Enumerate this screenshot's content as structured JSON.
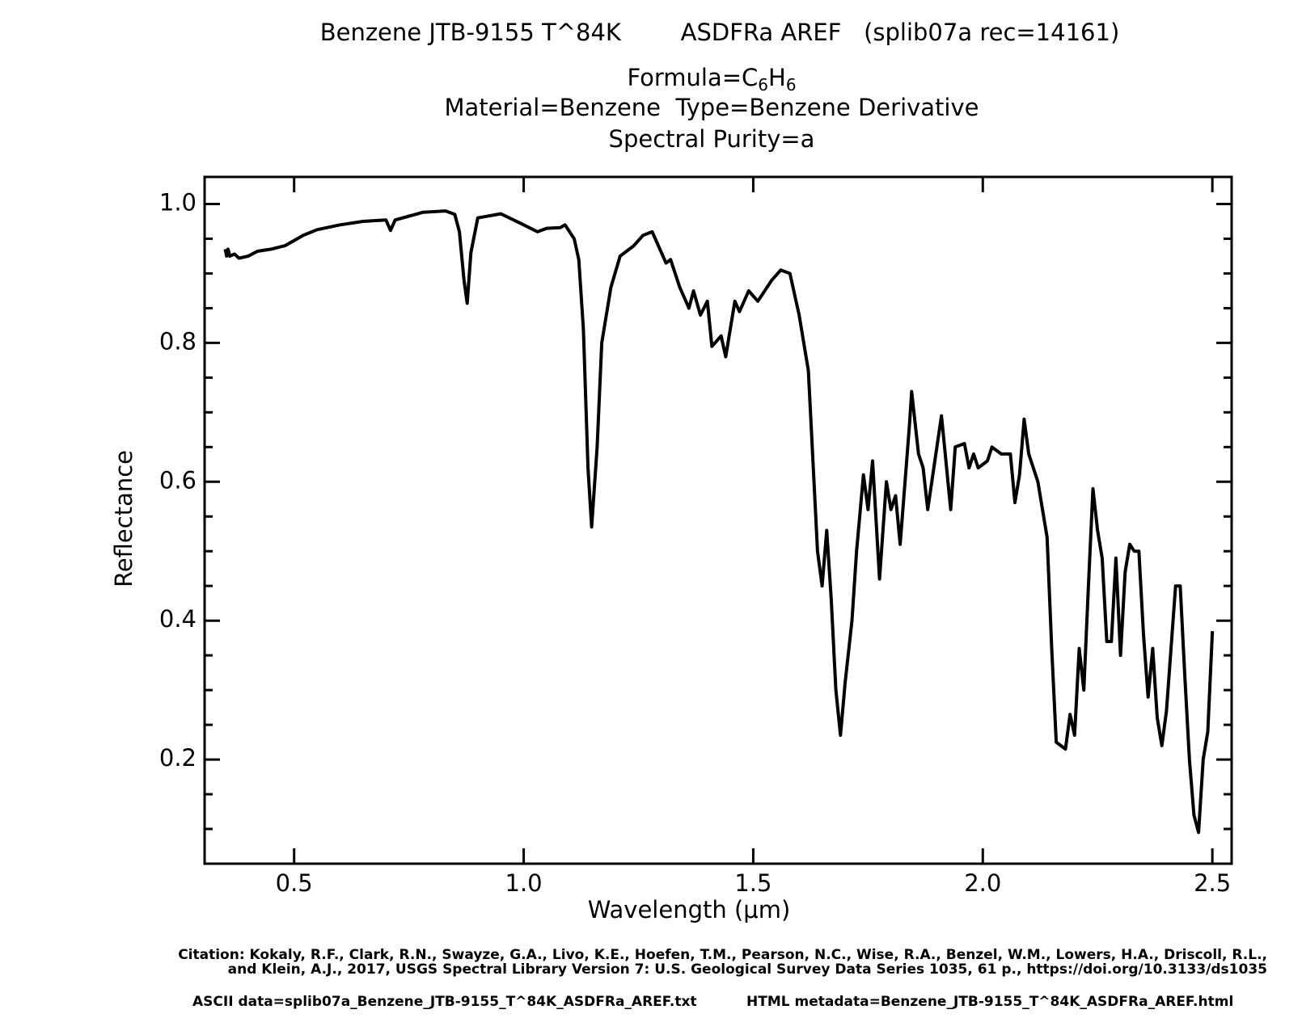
{
  "chart_data": {
    "type": "line",
    "title": "Benzene JTB-9155 T^84K        ASDFRa AREF   (splib07a rec=14161)",
    "formula": [
      "Formula=C",
      "6",
      "H",
      "6"
    ],
    "subtitle_lines": [
      "Material=Benzene  Type=Benzene Derivative",
      "Spectral Purity=a"
    ],
    "xlabel": "Wavelength (μm)",
    "ylabel": "Reflectance",
    "citation": [
      "Citation: Kokaly, R.F., Clark, R.N., Swayze, G.A., Livo, K.E., Hoefen, T.M., Pearson, N.C., Wise, R.A., Benzel, W.M., Lowers, H.A., Driscoll, R.L.,",
      "and Klein, A.J., 2017, USGS Spectral Library Version 7: U.S. Geological Survey Data Series 1035, 61 p., https://doi.org/10.3133/ds1035"
    ],
    "footer": [
      "ASCII data=splib07a_Benzene_JTB-9155_T^84K_ASDFRa_AREF.txt",
      "HTML metadata=Benzene_JTB-9155_T^84K_ASDFRa_AREF.html"
    ],
    "xlim": [
      0.305,
      2.542
    ],
    "ylim": [
      0.05,
      1.039
    ],
    "xticks": [
      0.5,
      {
        "value": 1,
        "label": "1.0"
      },
      1.5,
      {
        "value": 2,
        "label": "2.0"
      },
      2.5
    ],
    "yticks": [
      0.2,
      0.4,
      0.6,
      0.8,
      {
        "value": 1,
        "label": "1.0"
      }
    ],
    "yminorticks": [
      0.1,
      0.15,
      0.25,
      0.3,
      0.35,
      0.45,
      0.5,
      0.55,
      0.65,
      0.7,
      0.75,
      0.85,
      0.9,
      0.95
    ],
    "x": [
      0.35,
      0.353,
      0.356,
      0.36,
      0.37,
      0.38,
      0.4,
      0.42,
      0.45,
      0.48,
      0.52,
      0.55,
      0.6,
      0.65,
      0.7,
      0.71,
      0.72,
      0.78,
      0.83,
      0.85,
      0.86,
      0.87,
      0.877,
      0.885,
      0.9,
      0.95,
      1.0,
      1.03,
      1.05,
      1.08,
      1.09,
      1.11,
      1.12,
      1.13,
      1.14,
      1.148,
      1.16,
      1.17,
      1.19,
      1.21,
      1.24,
      1.26,
      1.28,
      1.3,
      1.31,
      1.32,
      1.34,
      1.36,
      1.37,
      1.385,
      1.4,
      1.41,
      1.43,
      1.44,
      1.46,
      1.47,
      1.49,
      1.51,
      1.54,
      1.56,
      1.58,
      1.6,
      1.62,
      1.64,
      1.65,
      1.66,
      1.67,
      1.68,
      1.69,
      1.7,
      1.715,
      1.725,
      1.74,
      1.75,
      1.76,
      1.775,
      1.79,
      1.8,
      1.81,
      1.82,
      1.84,
      1.845,
      1.86,
      1.87,
      1.88,
      1.9,
      1.91,
      1.93,
      1.94,
      1.96,
      1.97,
      1.98,
      1.99,
      2.01,
      2.02,
      2.04,
      2.06,
      2.07,
      2.08,
      2.09,
      2.1,
      2.12,
      2.14,
      2.15,
      2.16,
      2.17,
      2.18,
      2.19,
      2.2,
      2.21,
      2.22,
      2.23,
      2.24,
      2.25,
      2.26,
      2.27,
      2.28,
      2.29,
      2.3,
      2.31,
      2.32,
      2.33,
      2.34,
      2.35,
      2.36,
      2.37,
      2.38,
      2.39,
      2.4,
      2.42,
      2.43,
      2.44,
      2.45,
      2.46,
      2.47,
      2.48,
      2.49,
      2.5
    ],
    "series": [
      {
        "color": "#000000",
        "values": [
          0.935,
          0.925,
          0.935,
          0.925,
          0.928,
          0.922,
          0.925,
          0.932,
          0.935,
          0.94,
          0.955,
          0.963,
          0.97,
          0.975,
          0.977,
          0.962,
          0.977,
          0.988,
          0.99,
          0.985,
          0.96,
          0.89,
          0.857,
          0.93,
          0.98,
          0.986,
          0.97,
          0.96,
          0.965,
          0.966,
          0.97,
          0.95,
          0.92,
          0.82,
          0.62,
          0.535,
          0.65,
          0.8,
          0.88,
          0.925,
          0.94,
          0.955,
          0.96,
          0.93,
          0.915,
          0.92,
          0.88,
          0.85,
          0.875,
          0.84,
          0.86,
          0.795,
          0.81,
          0.78,
          0.86,
          0.845,
          0.875,
          0.86,
          0.89,
          0.905,
          0.9,
          0.84,
          0.76,
          0.5,
          0.45,
          0.53,
          0.43,
          0.3,
          0.235,
          0.31,
          0.4,
          0.5,
          0.61,
          0.56,
          0.63,
          0.46,
          0.6,
          0.56,
          0.58,
          0.51,
          0.68,
          0.73,
          0.64,
          0.62,
          0.56,
          0.65,
          0.695,
          0.56,
          0.65,
          0.655,
          0.62,
          0.64,
          0.62,
          0.63,
          0.65,
          0.64,
          0.64,
          0.57,
          0.61,
          0.69,
          0.64,
          0.6,
          0.52,
          0.36,
          0.225,
          0.22,
          0.215,
          0.265,
          0.235,
          0.36,
          0.3,
          0.45,
          0.59,
          0.53,
          0.49,
          0.37,
          0.37,
          0.49,
          0.35,
          0.47,
          0.51,
          0.5,
          0.5,
          0.38,
          0.29,
          0.36,
          0.26,
          0.22,
          0.27,
          0.45,
          0.45,
          0.32,
          0.2,
          0.12,
          0.095,
          0.2,
          0.24,
          0.385
        ]
      }
    ]
  }
}
